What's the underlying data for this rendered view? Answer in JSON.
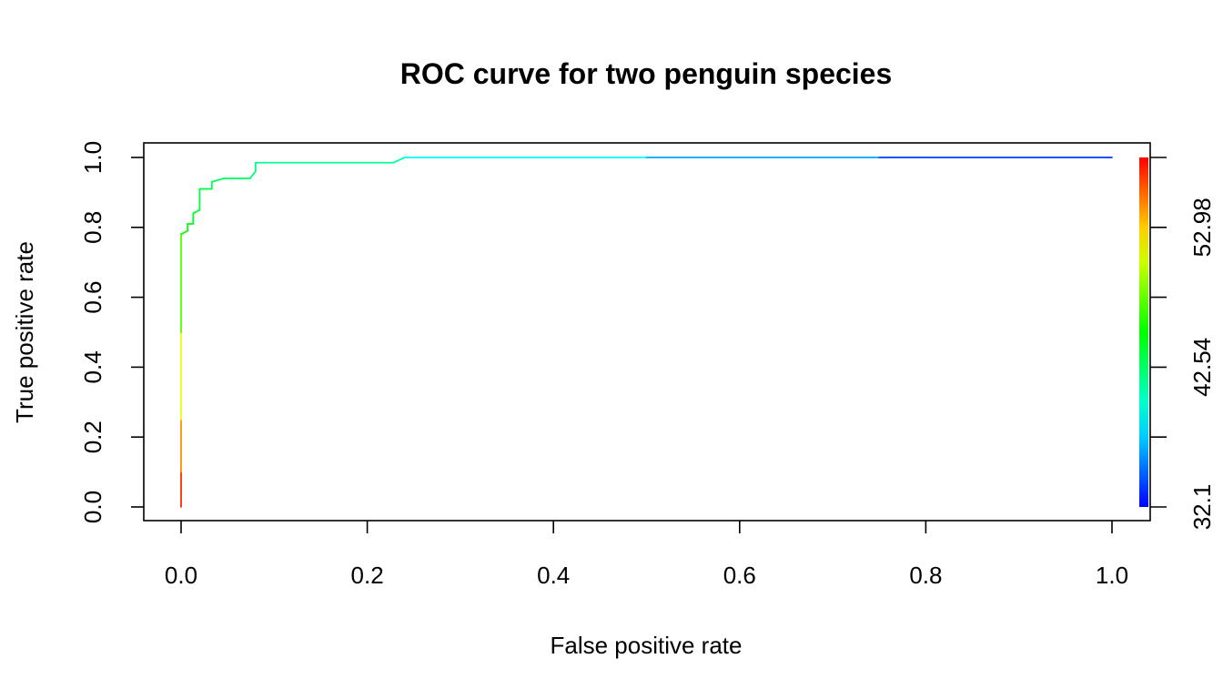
{
  "chart_data": {
    "type": "line",
    "title": "ROC curve for two penguin species",
    "xlabel": "False positive rate",
    "ylabel": "True positive rate",
    "xlim": [
      0,
      1
    ],
    "ylim": [
      0,
      1
    ],
    "x_ticks": [
      "0.0",
      "0.2",
      "0.4",
      "0.6",
      "0.8",
      "1.0"
    ],
    "y_ticks": [
      "0.0",
      "0.2",
      "0.4",
      "0.6",
      "0.8",
      "1.0"
    ],
    "grid": false,
    "legend": "none",
    "series": [
      {
        "x": [
          0,
          0,
          0,
          0,
          0,
          0.007,
          0.007,
          0.013,
          0.013,
          0.02,
          0.02,
          0.033,
          0.033,
          0.046,
          0.074,
          0.08,
          0.08,
          0.228,
          0.24,
          0.5,
          0.75,
          1.0
        ],
        "y": [
          0,
          0.1,
          0.25,
          0.5,
          0.78,
          0.79,
          0.81,
          0.81,
          0.84,
          0.85,
          0.91,
          0.91,
          0.93,
          0.94,
          0.94,
          0.96,
          0.985,
          0.985,
          1.0,
          1.0,
          1.0,
          1.0
        ],
        "cutoff": [
          60.0,
          57.0,
          54.5,
          50.0,
          46.0,
          45.7,
          45.3,
          45.0,
          44.7,
          44.4,
          44.0,
          43.8,
          43.5,
          43.2,
          42.9,
          42.6,
          42.3,
          41.5,
          40.8,
          38.0,
          35.2,
          32.1
        ]
      }
    ],
    "colorbar": {
      "min": 32.1,
      "max": 59.6,
      "labels": [
        "32.1",
        "42.54",
        "52.98"
      ],
      "label_values": [
        32.1,
        42.54,
        52.98
      ],
      "tick_values": [
        32.1,
        37.32,
        42.54,
        47.76,
        52.98,
        58.2
      ],
      "palette": "rainbow",
      "low_color": "#0000ff",
      "high_color": "#ff0000"
    }
  }
}
